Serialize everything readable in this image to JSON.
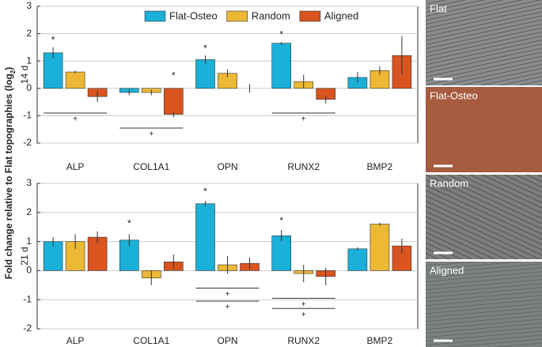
{
  "y_label": {
    "text": "Fold change relative to Flat topographies (log",
    "sub": "2",
    "end": ")"
  },
  "chart_data": [
    {
      "type": "bar",
      "ylabel": "14 d",
      "categories": [
        "ALP",
        "COL1A1",
        "OPN",
        "RUNX2",
        "BMP2"
      ],
      "series": [
        {
          "name": "Flat-Osteo",
          "color": "#1ab0d8",
          "values": [
            1.3,
            -0.15,
            1.05,
            1.65,
            0.4
          ],
          "errors": [
            0.2,
            0.1,
            0.15,
            0.05,
            0.2
          ]
        },
        {
          "name": "Random",
          "color": "#edb833",
          "values": [
            0.6,
            -0.15,
            0.55,
            0.25,
            0.65
          ],
          "errors": [
            0.05,
            0.1,
            0.15,
            0.25,
            0.15
          ]
        },
        {
          "name": "Aligned",
          "color": "#d9541f",
          "values": [
            -0.3,
            -0.95,
            0.0,
            -0.4,
            1.2
          ],
          "errors": [
            0.2,
            0.1,
            0.15,
            0.15,
            0.7
          ]
        }
      ],
      "ylim": [
        -2,
        3
      ],
      "yticks": [
        -2,
        -1,
        0,
        1,
        2,
        3
      ],
      "grid": true,
      "legend": "top",
      "annotations": [
        {
          "text": "*",
          "category": "ALP",
          "series": "Flat-Osteo",
          "y": 1.75
        },
        {
          "text": "*",
          "category": "OPN",
          "series": "Flat-Osteo",
          "y": 1.45
        },
        {
          "text": "*",
          "category": "RUNX2",
          "series": "Flat-Osteo",
          "y": 1.95
        },
        {
          "text": "*",
          "category": "COL1A1",
          "series": "Aligned",
          "y": 0.45
        },
        {
          "text": "+",
          "category": "ALP",
          "y": -0.9,
          "line": true
        },
        {
          "text": "+",
          "category": "COL1A1",
          "y": -1.45,
          "line": true
        },
        {
          "text": "+",
          "category": "RUNX2",
          "y": -0.9,
          "line": true
        }
      ]
    },
    {
      "type": "bar",
      "ylabel": "21 d",
      "categories": [
        "ALP",
        "COL1A1",
        "OPN",
        "RUNX2",
        "BMP2"
      ],
      "series": [
        {
          "name": "Flat-Osteo",
          "color": "#1ab0d8",
          "values": [
            1.0,
            1.05,
            2.3,
            1.2,
            0.75
          ],
          "errors": [
            0.15,
            0.2,
            0.1,
            0.2,
            0.05
          ]
        },
        {
          "name": "Random",
          "color": "#edb833",
          "values": [
            1.0,
            -0.25,
            0.2,
            -0.1,
            1.6
          ],
          "errors": [
            0.25,
            0.25,
            0.3,
            0.3,
            0.05
          ]
        },
        {
          "name": "Aligned",
          "color": "#d9541f",
          "values": [
            1.15,
            0.3,
            0.25,
            -0.2,
            0.85
          ],
          "errors": [
            0.2,
            0.25,
            0.2,
            0.3,
            0.25
          ]
        }
      ],
      "ylim": [
        -2,
        3
      ],
      "yticks": [
        -2,
        -1,
        0,
        1,
        2,
        3
      ],
      "grid": true,
      "annotations": [
        {
          "text": "*",
          "category": "COL1A1",
          "series": "Flat-Osteo",
          "y": 1.6
        },
        {
          "text": "*",
          "category": "OPN",
          "series": "Flat-Osteo",
          "y": 2.7
        },
        {
          "text": "*",
          "category": "RUNX2",
          "series": "Flat-Osteo",
          "y": 1.7
        },
        {
          "text": "+",
          "category": "OPN",
          "y": -0.6,
          "line": true
        },
        {
          "text": "+",
          "category": "OPN",
          "y": -1.05,
          "line": true
        },
        {
          "text": "+",
          "category": "RUNX2",
          "y": -0.95,
          "line": true
        },
        {
          "text": "+",
          "category": "RUNX2",
          "y": -1.3,
          "line": true
        }
      ]
    }
  ],
  "image_panels": [
    {
      "label": "Flat"
    },
    {
      "label": "Flat-Osteo"
    },
    {
      "label": "Random"
    },
    {
      "label": "Aligned"
    }
  ]
}
